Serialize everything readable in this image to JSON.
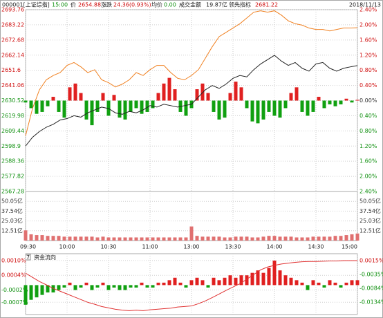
{
  "header": {
    "code": "000001[上证综指]",
    "time": "15:00",
    "price_label": "价",
    "price": "2654.88",
    "change_label": "涨跌",
    "change": "24.36(0.93%)",
    "avg_label": "均价",
    "avg": "0.00",
    "amount_label": "成交金额",
    "amount": "19.87亿",
    "lead_label": "领先指标",
    "lead": "2681.22",
    "date": "2018/11/13"
  },
  "chart_data": [
    {
      "type": "line",
      "xlim": [
        0,
        240
      ],
      "xticks": [
        {
          "value": 0,
          "label": "09:30"
        },
        {
          "value": 30,
          "label": "10:00"
        },
        {
          "value": 60,
          "label": "10:30"
        },
        {
          "value": 90,
          "label": "11:00"
        },
        {
          "value": 120,
          "label": "13:00"
        },
        {
          "value": 150,
          "label": "13:30"
        },
        {
          "value": 180,
          "label": "14:00"
        },
        {
          "value": 210,
          "label": "14:30"
        },
        {
          "value": 240,
          "label": "15:00"
        }
      ],
      "ylim": [
        2567.28,
        2693.76
      ],
      "yticks": [
        2693.76,
        2683.22,
        2672.68,
        2662.14,
        2651.6,
        2641.06,
        2630.52,
        2619.98,
        2609.44,
        2598.9,
        2588.36,
        2577.82,
        2567.28
      ],
      "y2lim": [
        -2.4,
        2.4
      ],
      "y2ticks": [
        {
          "value": 2.4,
          "label": "2.40%"
        },
        {
          "value": 2.0,
          "label": "2.00%"
        },
        {
          "value": 1.6,
          "label": "1.60%"
        },
        {
          "value": 1.2,
          "label": "1.20%"
        },
        {
          "value": 0.8,
          "label": "0.80%"
        },
        {
          "value": 0.4,
          "label": "0.40%"
        },
        {
          "value": 0,
          "label": "0.00%"
        },
        {
          "value": -0.4,
          "label": "0.40%"
        },
        {
          "value": -0.8,
          "label": "0.80%"
        },
        {
          "value": -1.2,
          "label": "1.20%"
        },
        {
          "value": -1.6,
          "label": "1.60%"
        },
        {
          "value": -2.0,
          "label": "2.00%"
        },
        {
          "value": -2.4,
          "label": "2.40%"
        }
      ],
      "grid": true,
      "series": [
        {
          "type": "bar",
          "axis": "y2",
          "up_color": "#e02020",
          "down_color": "#10a010",
          "x": [
            0,
            4,
            8,
            12,
            16,
            20,
            24,
            28,
            32,
            36,
            40,
            44,
            48,
            52,
            56,
            60,
            64,
            68,
            72,
            76,
            80,
            84,
            88,
            92,
            96,
            100,
            104,
            108,
            112,
            116,
            120,
            124,
            128,
            132,
            136,
            140,
            144,
            148,
            152,
            156,
            160,
            164,
            168,
            172,
            176,
            180,
            184,
            188,
            192,
            196,
            200,
            204,
            208,
            212,
            216,
            220,
            224,
            228,
            232,
            236,
            240
          ],
          "values": [
            -0.05,
            -0.2,
            -0.35,
            -0.3,
            -0.15,
            0.1,
            -0.3,
            -0.45,
            0.35,
            0.45,
            0.2,
            -0.5,
            -0.65,
            -0.3,
            0.2,
            -0.4,
            0.15,
            -0.45,
            -0.5,
            -0.3,
            -0.2,
            -0.35,
            -0.3,
            -0.2,
            0.2,
            0.45,
            0.6,
            0.3,
            -0.3,
            -0.4,
            -0.2,
            0.3,
            0.45,
            0.2,
            -0.3,
            -0.5,
            -0.45,
            0.2,
            0.5,
            0.35,
            -0.2,
            -0.55,
            -0.6,
            -0.5,
            -0.3,
            -0.4,
            -0.45,
            -0.2,
            0.2,
            0.35,
            -0.3,
            -0.4,
            -0.3,
            0.1,
            -0.2,
            -0.1,
            -0.15,
            -0.1,
            0.05,
            -0.05,
            0.02
          ]
        },
        {
          "type": "line",
          "color": "#f08020",
          "x": [
            0,
            5,
            10,
            15,
            20,
            25,
            30,
            35,
            40,
            45,
            50,
            55,
            60,
            65,
            70,
            75,
            80,
            85,
            90,
            95,
            100,
            105,
            110,
            115,
            120,
            125,
            130,
            135,
            140,
            145,
            150,
            155,
            160,
            165,
            170,
            175,
            180,
            185,
            190,
            195,
            200,
            205,
            210,
            215,
            220,
            225,
            230,
            235,
            240
          ],
          "values": [
            2606,
            2625,
            2638,
            2645,
            2648,
            2650,
            2655,
            2657,
            2654,
            2650,
            2652,
            2645,
            2643,
            2640,
            2642,
            2645,
            2650,
            2648,
            2652,
            2655,
            2655,
            2650,
            2646,
            2645,
            2648,
            2652,
            2660,
            2668,
            2675,
            2678,
            2681,
            2684,
            2688,
            2692,
            2693,
            2692,
            2693,
            2690,
            2686,
            2684,
            2683,
            2681,
            2680,
            2680,
            2679,
            2680,
            2681,
            2681,
            2681.22
          ]
        },
        {
          "type": "line",
          "color": "#222222",
          "x": [
            0,
            5,
            10,
            15,
            20,
            25,
            30,
            35,
            40,
            45,
            50,
            55,
            60,
            65,
            70,
            75,
            80,
            85,
            90,
            95,
            100,
            105,
            110,
            115,
            120,
            125,
            130,
            135,
            140,
            145,
            150,
            155,
            160,
            165,
            170,
            175,
            180,
            185,
            190,
            195,
            200,
            205,
            210,
            215,
            220,
            225,
            230,
            235,
            240
          ],
          "values": [
            2598.9,
            2605,
            2609,
            2612,
            2614,
            2617,
            2618,
            2620,
            2619,
            2622,
            2624,
            2626,
            2625,
            2622,
            2621,
            2623,
            2622,
            2624,
            2627,
            2626,
            2628,
            2627,
            2626,
            2627,
            2628,
            2633,
            2638,
            2641,
            2639,
            2642,
            2646,
            2648,
            2647,
            2652,
            2656,
            2659,
            2662,
            2658,
            2655,
            2657,
            2653,
            2651,
            2656,
            2657,
            2653,
            2651,
            2653,
            2654,
            2654.88
          ]
        }
      ]
    },
    {
      "type": "bar",
      "color": "#e07070",
      "x": [
        0,
        4,
        8,
        12,
        16,
        20,
        24,
        28,
        32,
        36,
        40,
        44,
        48,
        52,
        56,
        60,
        64,
        68,
        72,
        76,
        80,
        84,
        88,
        92,
        96,
        100,
        104,
        108,
        112,
        116,
        120,
        124,
        128,
        132,
        136,
        140,
        144,
        148,
        152,
        156,
        160,
        164,
        168,
        172,
        176,
        180,
        184,
        188,
        192,
        196,
        200,
        204,
        208,
        212,
        216,
        220,
        224,
        228,
        232,
        236,
        240
      ],
      "values": [
        13,
        8,
        7,
        7,
        6,
        6,
        6,
        5,
        5,
        5,
        5,
        5,
        5,
        4,
        5,
        4,
        4,
        4,
        4,
        4,
        4,
        4,
        4,
        4,
        4,
        4,
        4,
        4,
        4,
        4,
        18,
        6,
        5,
        5,
        5,
        5,
        4,
        4,
        5,
        5,
        5,
        4,
        4,
        5,
        6,
        6,
        5,
        5,
        5,
        4,
        4,
        4,
        5,
        5,
        5,
        5,
        6,
        6,
        7,
        8,
        9
      ],
      "ylim": [
        0,
        62.56
      ],
      "yticks": [
        {
          "value": 50.05,
          "label": "50.05亿"
        },
        {
          "value": 37.54,
          "label": "37.54亿"
        },
        {
          "value": 25.03,
          "label": "25.03亿"
        },
        {
          "value": 12.51,
          "label": "12.51亿"
        }
      ],
      "grid": true
    },
    {
      "type": "bar",
      "panel_number": 7,
      "title": "资金流向",
      "ylim": [
        -0.0012,
        0.00128
      ],
      "yticks": [
        {
          "value": 0.001,
          "label": "0.0010%"
        },
        {
          "value": 0.0004,
          "label": "0.0004%"
        },
        {
          "value": -0.0002,
          "label": "-0.0002%"
        },
        {
          "value": -0.0007,
          "label": "-0.0007%"
        }
      ],
      "y2lim": [
        -0.0179,
        0.004
      ],
      "y2ticks": [
        {
          "value": 0.0015,
          "label": "0.0015%"
        },
        {
          "value": -0.0035,
          "label": "-0.0035%"
        },
        {
          "value": -0.0084,
          "label": "-0.0084%"
        },
        {
          "value": -0.0134,
          "label": "-0.0134%"
        }
      ],
      "grid": true,
      "series": [
        {
          "type": "bar",
          "up_color": "#e02020",
          "down_color": "#10a010",
          "x": [
            0,
            4,
            8,
            12,
            16,
            20,
            24,
            28,
            32,
            36,
            40,
            44,
            48,
            52,
            56,
            60,
            64,
            68,
            72,
            76,
            80,
            84,
            88,
            92,
            96,
            100,
            104,
            108,
            112,
            116,
            120,
            124,
            128,
            132,
            136,
            140,
            144,
            148,
            152,
            156,
            160,
            164,
            168,
            172,
            176,
            180,
            184,
            188,
            192,
            196,
            200,
            204,
            208,
            212,
            216,
            220,
            224,
            228,
            232,
            236,
            240
          ],
          "values": [
            -0.0008,
            -0.0006,
            -0.0005,
            -0.0004,
            -0.0003,
            -0.0003,
            -0.0002,
            -0.0001,
            0.0001,
            -0.0002,
            -0.0001,
            0.0001,
            -0.0002,
            -0.0001,
            0.0001,
            -0.0002,
            -0.0001,
            -0.0002,
            -0.0002,
            -0.0001,
            -0.0001,
            0.0001,
            -0.0001,
            -0.0001,
            0.0001,
            0.0001,
            0.0002,
            0.0003,
            0.0001,
            -0.0001,
            0.0002,
            0.0003,
            0.0002,
            -0.0001,
            0.0003,
            0.0002,
            0.0003,
            0.0004,
            0.0003,
            0.0004,
            0.0004,
            0.0005,
            0.0006,
            0.0005,
            0.0007,
            0.001,
            0.0006,
            0.0004,
            0.0003,
            0.0002,
            0.0001,
            -0.0002,
            0.0002,
            0.0001,
            -0.0001,
            0.0002,
            0.0001,
            -0.0001,
            0.0001,
            0.0002,
            0.0002
          ]
        },
        {
          "type": "line",
          "axis": "y2",
          "color": "#e03030",
          "x": [
            0,
            5,
            10,
            15,
            20,
            25,
            30,
            35,
            40,
            45,
            50,
            55,
            60,
            65,
            70,
            75,
            80,
            85,
            90,
            95,
            100,
            105,
            110,
            115,
            120,
            125,
            130,
            135,
            140,
            145,
            150,
            155,
            160,
            165,
            170,
            175,
            180,
            185,
            190,
            195,
            200,
            205,
            210,
            215,
            220,
            225,
            230,
            235,
            240
          ],
          "values": [
            -0.003,
            -0.0045,
            -0.006,
            -0.0072,
            -0.0085,
            -0.0095,
            -0.0105,
            -0.0115,
            -0.0125,
            -0.0135,
            -0.0142,
            -0.015,
            -0.0155,
            -0.016,
            -0.0163,
            -0.0165,
            -0.0163,
            -0.0165,
            -0.0162,
            -0.016,
            -0.0158,
            -0.0156,
            -0.0152,
            -0.015,
            -0.0148,
            -0.014,
            -0.013,
            -0.0118,
            -0.0105,
            -0.0092,
            -0.008,
            -0.0068,
            -0.0052,
            -0.0035,
            -0.0018,
            -0.0008,
            -0.0002,
            0.0003,
            0.0006,
            0.0009,
            0.0011,
            0.0012,
            0.0012,
            0.0013,
            0.0014,
            0.0014,
            0.0015,
            0.0015,
            0.0015
          ]
        }
      ]
    }
  ]
}
